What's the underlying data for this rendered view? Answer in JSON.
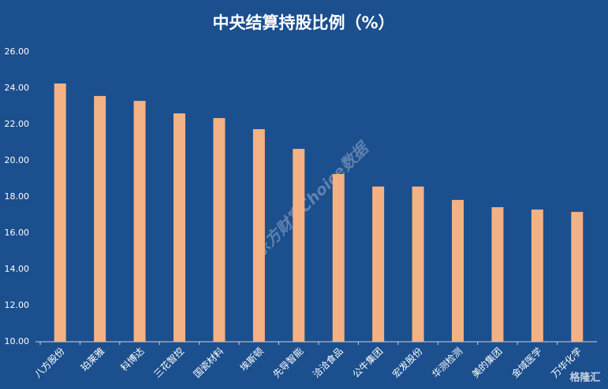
{
  "chart_data": {
    "type": "bar",
    "title": "中央结算持股比例（%）",
    "categories": [
      "八方股份",
      "珀莱雅",
      "科博达",
      "三花智控",
      "国瓷材料",
      "埃斯顿",
      "先导智能",
      "洽洽食品",
      "公牛集团",
      "宏发股份",
      "华测检测",
      "美的集团",
      "金域医学",
      "万华化学"
    ],
    "values": [
      24.26,
      23.57,
      23.3,
      22.61,
      22.35,
      21.74,
      20.65,
      19.26,
      18.57,
      18.57,
      17.83,
      17.43,
      17.3,
      17.17
    ],
    "color": "#f4b183",
    "ylim": [
      10,
      26
    ],
    "yticks": [
      {
        "value": 10,
        "label": "10.00"
      },
      {
        "value": 12,
        "label": "12.00"
      },
      {
        "value": 14,
        "label": "14.00"
      },
      {
        "value": 16,
        "label": "16.00"
      },
      {
        "value": 18,
        "label": "18.00"
      },
      {
        "value": 20,
        "label": "20.00"
      },
      {
        "value": 22,
        "label": "22.00"
      },
      {
        "value": 24,
        "label": "24.00"
      },
      {
        "value": 26,
        "label": "26.00"
      }
    ],
    "grid": false,
    "watermarks": [
      "东方财富Choice数据",
      "格隆汇"
    ]
  }
}
